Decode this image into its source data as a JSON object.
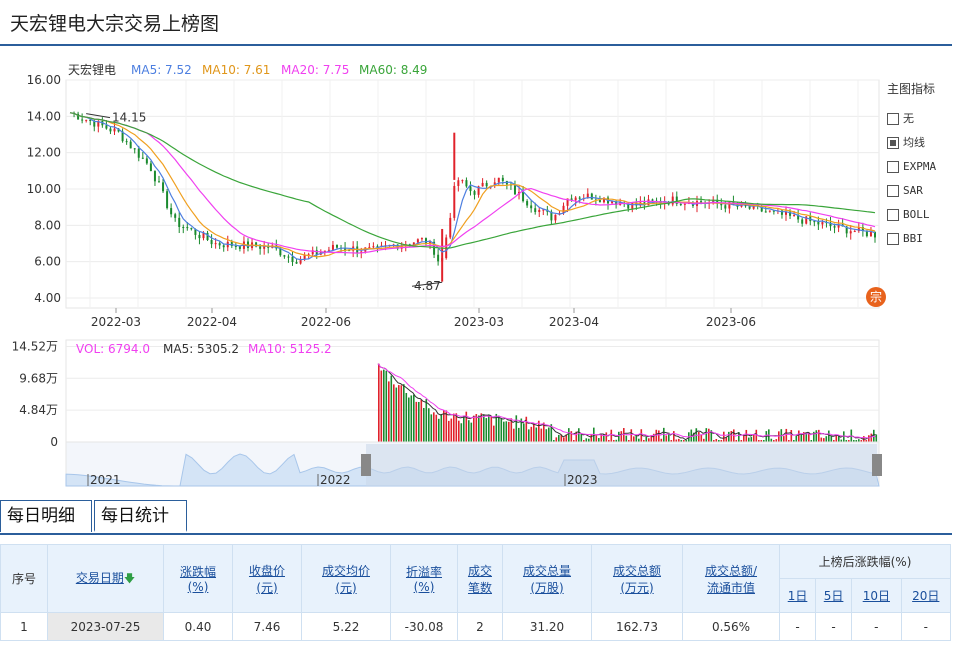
{
  "page": {
    "title": "天宏锂电大宗交易上榜图"
  },
  "price_chart": {
    "legend": {
      "name": "天宏锂电",
      "ma5": "MA5: 7.52",
      "ma10": "MA10: 7.61",
      "ma20": "MA20: 7.75",
      "ma60": "MA60: 8.49"
    },
    "y_ticks": [
      "16.00",
      "14.00",
      "12.00",
      "10.00",
      "8.00",
      "6.00",
      "4.00"
    ],
    "x_ticks": [
      "2022-03",
      "2022-04",
      "2022-06",
      "2023-03",
      "2023-04",
      "2023-06"
    ],
    "annotations": {
      "high": "14.15",
      "low": "4.87"
    },
    "colors": {
      "up": "#e0222b",
      "down": "#1a8a2e",
      "ma5": "#4d7fe0",
      "ma10": "#f0a020",
      "ma20": "#f040f0",
      "ma60": "#3aa53a"
    }
  },
  "volume_chart": {
    "legend": {
      "vol": "VOL: 6794.0",
      "ma5": "MA5: 5305.2",
      "ma10": "MA10: 5125.2"
    },
    "y_ticks": [
      "14.52万",
      "9.68万",
      "4.84万",
      "0"
    ]
  },
  "navigator": {
    "labels": [
      "2021",
      "2022",
      "2023"
    ]
  },
  "indicator_panel": {
    "header": "主图指标",
    "options": [
      {
        "label": "无",
        "checked": false
      },
      {
        "label": "均线",
        "checked": true
      },
      {
        "label": "EXPMA",
        "checked": false
      },
      {
        "label": "SAR",
        "checked": false
      },
      {
        "label": "BOLL",
        "checked": false
      },
      {
        "label": "BBI",
        "checked": false
      }
    ],
    "badge": "宗"
  },
  "tabs": {
    "daily_detail": "每日明细",
    "daily_stats": "每日统计"
  },
  "table": {
    "headers": {
      "seq": "序号",
      "date": "交易日期",
      "change_line1": "涨跌幅",
      "change_line2": "(%)",
      "close_line1": "收盘价",
      "close_line2": "(元)",
      "avgprice_line1": "成交均价",
      "avgprice_line2": "(元)",
      "premium_line1": "折溢率",
      "premium_line2": "(%)",
      "count_line1": "成交",
      "count_line2": "笔数",
      "vol_line1": "成交总量",
      "vol_line2": "(万股)",
      "amt_line1": "成交总额",
      "amt_line2": "(万元)",
      "ratio_line1": "成交总额/",
      "ratio_line2": "流通市值",
      "after": "上榜后涨跌幅(%)",
      "d1": "1日",
      "d5": "5日",
      "d10": "10日",
      "d20": "20日"
    },
    "rows": [
      {
        "seq": "1",
        "date": "2023-07-25",
        "change": "0.40",
        "close": "7.46",
        "avg": "5.22",
        "premium": "-30.08",
        "count": "2",
        "vol": "31.20",
        "amt": "162.73",
        "ratio": "0.56%",
        "d1": "-",
        "d5": "-",
        "d10": "-",
        "d20": "-"
      }
    ]
  }
}
